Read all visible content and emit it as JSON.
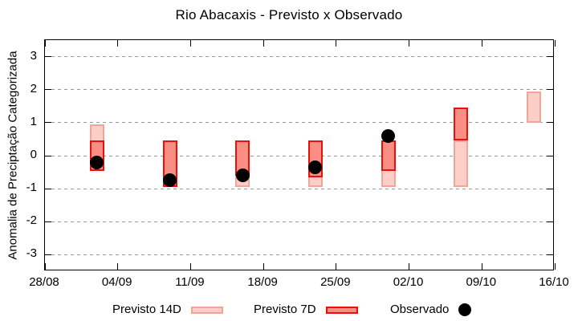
{
  "chart_data": {
    "type": "bar",
    "subtype": "floating-range-bars-with-scatter",
    "title": "Rio Abacaxis - Previsto x Observado",
    "xlabel": "",
    "ylabel": "Anomalia de Preciptação Categorizada",
    "ylim": [
      -3.5,
      3.5
    ],
    "yticks": [
      3,
      2,
      1,
      0,
      -1,
      -2,
      -3
    ],
    "grid": true,
    "legend_position": "bottom",
    "x_axis": {
      "tick_labels": [
        "28/08",
        "04/09",
        "11/09",
        "18/09",
        "25/09",
        "02/10",
        "09/10",
        "16/10"
      ],
      "tick_days": [
        0,
        7,
        14,
        21,
        28,
        35,
        42,
        49
      ],
      "total_days": 49
    },
    "colors": {
      "background": "#ffffff",
      "axis": "#000000",
      "grid": "#9a9a9a",
      "previsto_14d_fill": "#fbcfc8",
      "previsto_14d_border": "#f0a49a",
      "previsto_7d_fill": "#fa8e84",
      "previsto_7d_border": "#e8120b",
      "observado": "#000000"
    },
    "series": [
      {
        "name": "Previsto 14D",
        "type": "range",
        "fill": "#fbcfc8",
        "border": "#f0a49a",
        "points": [
          {
            "date": "02/09",
            "day": 5,
            "low": -0.45,
            "high": 0.95
          },
          {
            "date": "16/09",
            "day": 19,
            "low": -0.95,
            "high": 0.45
          },
          {
            "date": "23/09",
            "day": 26,
            "low": -0.95,
            "high": 0.45
          },
          {
            "date": "30/09",
            "day": 33,
            "low": -0.95,
            "high": 0.45
          },
          {
            "date": "07/10",
            "day": 40,
            "low": -0.95,
            "high": 0.45
          },
          {
            "date": "14/10",
            "day": 47,
            "low": 1.0,
            "high": 1.95
          }
        ]
      },
      {
        "name": "Previsto 7D",
        "type": "range",
        "fill": "#fa8e84",
        "border": "#e8120b",
        "points": [
          {
            "date": "02/09",
            "day": 5,
            "low": -0.45,
            "high": 0.45
          },
          {
            "date": "09/09",
            "day": 12,
            "low": -0.95,
            "high": 0.45
          },
          {
            "date": "16/09",
            "day": 19,
            "low": -0.6,
            "high": 0.45
          },
          {
            "date": "23/09",
            "day": 26,
            "low": -0.65,
            "high": 0.45
          },
          {
            "date": "30/09",
            "day": 33,
            "low": -0.45,
            "high": 0.45
          },
          {
            "date": "07/10",
            "day": 40,
            "low": 0.45,
            "high": 1.45
          }
        ]
      },
      {
        "name": "Observado",
        "type": "scatter",
        "color": "#000000",
        "points": [
          {
            "date": "02/09",
            "day": 5,
            "value": -0.2
          },
          {
            "date": "09/09",
            "day": 12,
            "value": -0.75
          },
          {
            "date": "16/09",
            "day": 19,
            "value": -0.6
          },
          {
            "date": "23/09",
            "day": 26,
            "value": -0.35
          },
          {
            "date": "30/09",
            "day": 33,
            "value": 0.6
          }
        ]
      }
    ]
  }
}
